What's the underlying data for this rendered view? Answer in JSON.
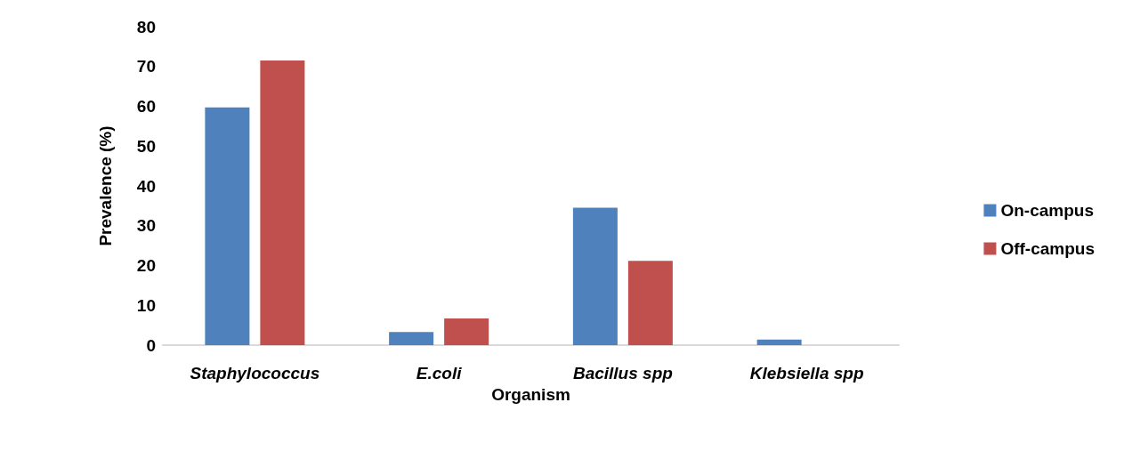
{
  "chart_data": {
    "type": "bar",
    "xlabel": "Organism",
    "ylabel": "Prevalence (%)",
    "categories": [
      "Staphylococcus",
      "E.coli",
      "Bacillus spp",
      "Klebsiella spp"
    ],
    "series": [
      {
        "name": "On-campus",
        "color": "#4f81bd",
        "values": [
          59.7,
          3.3,
          34.5,
          1.4
        ]
      },
      {
        "name": "Off-campus",
        "color": "#c0504d",
        "values": [
          71.5,
          6.7,
          21.2,
          0
        ]
      }
    ],
    "ylim": [
      0,
      80
    ],
    "yticks": [
      0,
      10,
      20,
      30,
      40,
      50,
      60,
      70,
      80
    ],
    "grid": false,
    "legend": "right"
  }
}
